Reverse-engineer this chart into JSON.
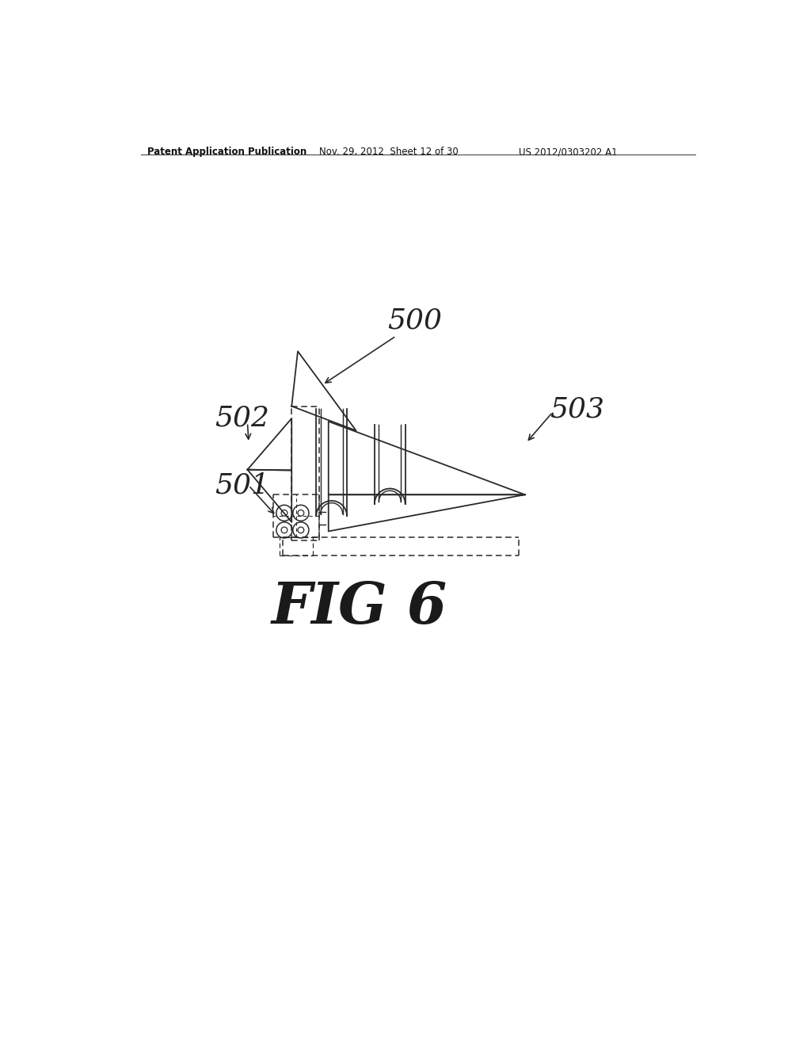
{
  "bg_color": "#ffffff",
  "header_left": "Patent Application Publication",
  "header_center": "Nov. 29, 2012  Sheet 12 of 30",
  "header_right": "US 2012/0303202 A1",
  "fig_label": "FIG 6",
  "label_500": "500",
  "label_501": "501",
  "label_502": "502",
  "label_503": "503",
  "line_color": "#2a2a2a",
  "line_width": 1.3,
  "dashed_lw": 1.1
}
